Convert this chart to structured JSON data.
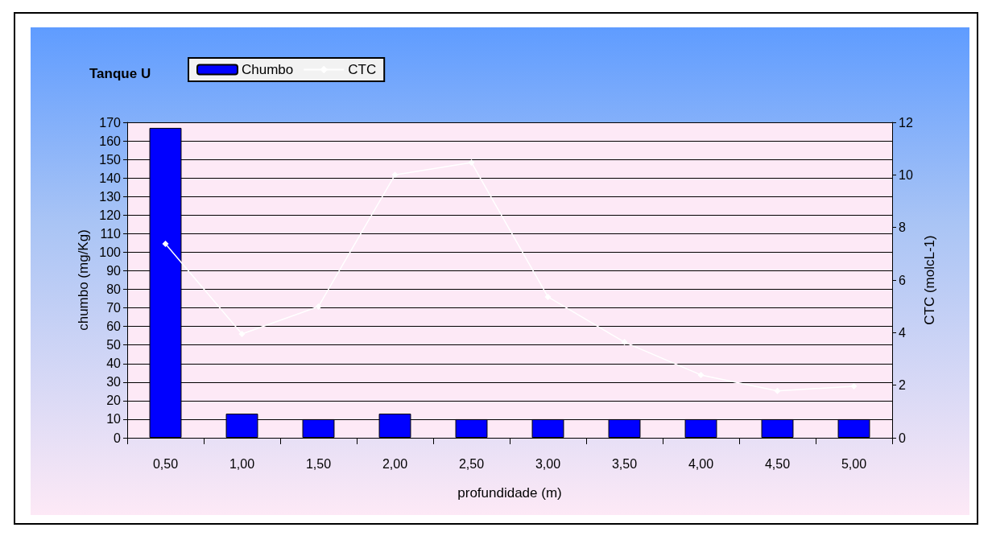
{
  "chart_data": {
    "type": "bar",
    "title": "Tanque U",
    "xlabel": "profundidade (m)",
    "ylabel": "chumbo (mg/Kg)",
    "y2label": "CTC (molcL-1)",
    "categories": [
      "0,50",
      "1,00",
      "1,50",
      "2,00",
      "2,50",
      "3,00",
      "3,50",
      "4,00",
      "4,50",
      "5,00"
    ],
    "series": [
      {
        "name": "Chumbo",
        "color": "#0000ff",
        "values": [
          167,
          13,
          10,
          13,
          10,
          10,
          10,
          10,
          10,
          10
        ]
      },
      {
        "name": "CTC",
        "type": "line",
        "axis": "y2",
        "color": "#ffffff",
        "marker": "diamond",
        "values": [
          7.38,
          3.95,
          4.99,
          10.0,
          10.47,
          5.36,
          3.64,
          2.39,
          1.78,
          1.96
        ]
      }
    ],
    "ylim": [
      0,
      170
    ],
    "yticks": [
      0,
      10,
      20,
      30,
      40,
      50,
      60,
      70,
      80,
      90,
      100,
      110,
      120,
      130,
      140,
      150,
      160,
      170
    ],
    "y2lim": [
      0,
      12
    ],
    "y2ticks": [
      0,
      2,
      4,
      6,
      8,
      10,
      12
    ],
    "grid": "y",
    "legend": "top left"
  }
}
